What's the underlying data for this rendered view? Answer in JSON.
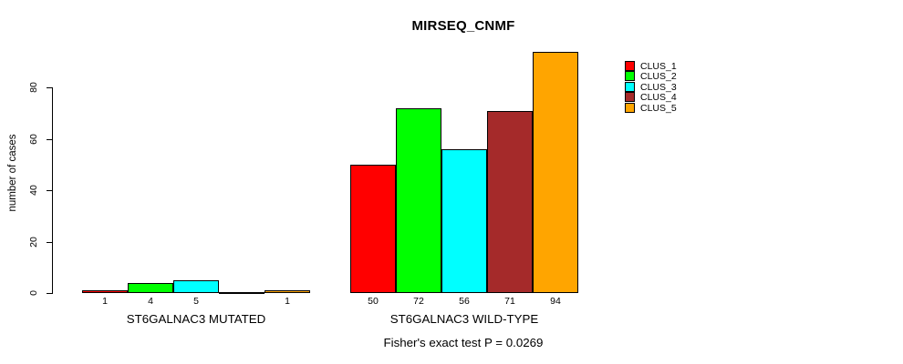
{
  "chart_data": {
    "type": "bar",
    "title": "MIRSEQ_CNMF",
    "ylabel": "number of cases",
    "xlabel": "",
    "yticks": [
      0,
      20,
      40,
      60,
      80
    ],
    "ylim": [
      0,
      97
    ],
    "grid": false,
    "legend_position": "top-right-inside",
    "categories": [
      "ST6GALNAC3 MUTATED",
      "ST6GALNAC3 WILD-TYPE"
    ],
    "series": [
      {
        "name": "CLUS_1",
        "color": "#FF0000",
        "values": [
          1,
          50
        ]
      },
      {
        "name": "CLUS_2",
        "color": "#00FF00",
        "values": [
          4,
          72
        ]
      },
      {
        "name": "CLUS_3",
        "color": "#00FFFF",
        "values": [
          5,
          56
        ]
      },
      {
        "name": "CLUS_4",
        "color": "#A52A2A",
        "values": [
          0,
          71
        ]
      },
      {
        "name": "CLUS_5",
        "color": "#FFA500",
        "values": [
          1,
          94
        ]
      }
    ],
    "bar_value_labels": [
      [
        "1",
        "4",
        "5",
        "",
        "1"
      ],
      [
        "50",
        "72",
        "56",
        "71",
        "94"
      ]
    ],
    "footnote": "Fisher's exact test P = 0.0269"
  }
}
